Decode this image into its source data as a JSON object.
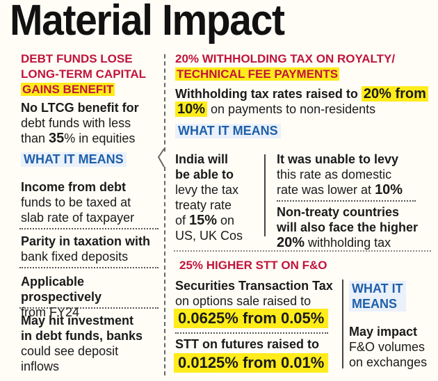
{
  "title": "Material Impact",
  "debt": {
    "heading": [
      "DEBT FUNDS LOSE",
      "LONG-TERM CAPITAL",
      "GAINS BENEFIT"
    ],
    "intro_bold": "No LTCG benefit for",
    "intro_2": "debt funds with less",
    "intro_3a": "than ",
    "intro_3b": "35",
    "intro_3c": "% in equities",
    "what": "WHAT IT MEANS",
    "p1": [
      "Income from debt",
      "funds to be taxed at",
      "slab rate of taxpayer"
    ],
    "p2": [
      "Parity in taxation with",
      "bank fixed deposits"
    ],
    "p3": [
      "Applicable prospectively",
      "from FY24"
    ],
    "p4": [
      "May hit investment",
      "in debt funds, banks",
      "could see deposit",
      "inflows"
    ]
  },
  "royalty": {
    "heading": [
      "20% WITHHOLDING TAX ON ROYALTY/",
      "TECHNICAL FEE PAYMENTS"
    ],
    "l1a": "Withholding tax rates raised to ",
    "l1b": "20% from",
    "l2a": "10%",
    "l2b": " on payments to non-residents",
    "what": "WHAT IT MEANS",
    "c1": [
      "India will",
      "be able to",
      "levy the tax",
      "treaty rate",
      "of ",
      "15%",
      " on",
      "US, UK Cos"
    ],
    "c2a": [
      "It was unable to levy",
      "this rate as domestic",
      "rate was lower at ",
      "10%"
    ],
    "c2b": [
      "Non-treaty countries",
      "will also face the higher",
      "20%",
      " withholding tax"
    ]
  },
  "stt": {
    "heading": "25% HIGHER STT ON F&O",
    "s1": [
      "Securities Transaction Tax",
      "on options sale raised to"
    ],
    "s1h": "0.0625% from 0.05%",
    "s2": "STT on futures raised to",
    "s2h": "0.0125% from 0.01%",
    "what": [
      "WHAT IT",
      "MEANS"
    ],
    "m": [
      "May impact",
      "F&O volumes",
      "on exchanges"
    ]
  }
}
